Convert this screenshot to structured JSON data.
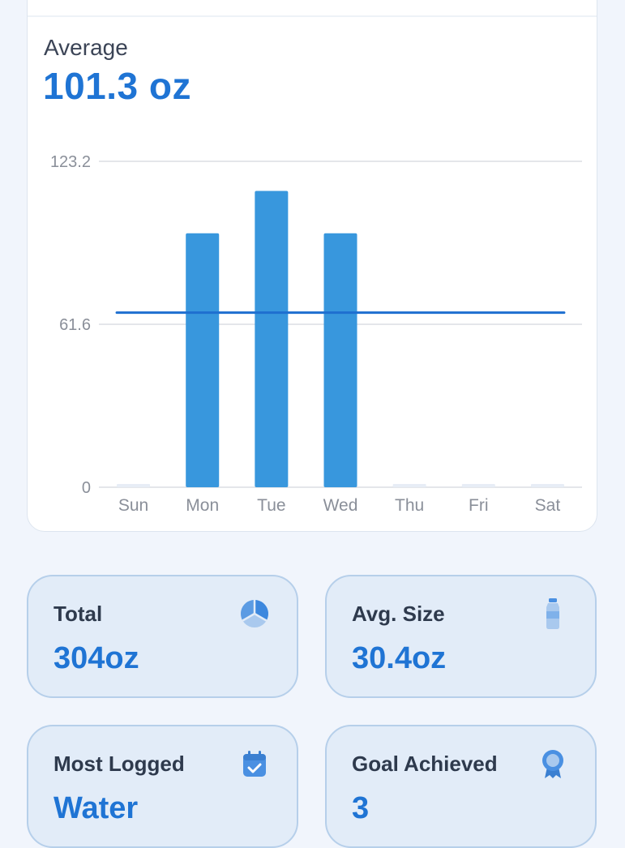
{
  "summary": {
    "label": "Average",
    "value": "101.3 oz"
  },
  "chart_data": {
    "type": "bar",
    "categories": [
      "Sun",
      "Mon",
      "Tue",
      "Wed",
      "Thu",
      "Fri",
      "Sat"
    ],
    "values": [
      0,
      96,
      112,
      96,
      0,
      0,
      0
    ],
    "y_ticks": [
      "123.2",
      "61.6",
      "0"
    ],
    "ylim": [
      0,
      123.2
    ],
    "reference_line": 66,
    "grid": true,
    "bar_color": "#3897dd",
    "empty_bar_color": "#e7edf6",
    "line_color": "#1e6fd0",
    "title": "",
    "xlabel": "",
    "ylabel": ""
  },
  "stats": {
    "total": {
      "label": "Total",
      "value": "304oz",
      "icon": "pie-chart-icon"
    },
    "avg_size": {
      "label": "Avg. Size",
      "value": "30.4oz",
      "icon": "water-bottle-icon"
    },
    "most_logged": {
      "label": "Most Logged",
      "value": "Water",
      "icon": "calendar-check-icon"
    },
    "goal_achieved": {
      "label": "Goal Achieved",
      "value": "3",
      "icon": "award-badge-icon"
    }
  },
  "colors": {
    "accent": "#1f74d4",
    "icon": "#4a90e2",
    "card_bg": "#e2ecf8",
    "card_border": "#b6cfea"
  }
}
